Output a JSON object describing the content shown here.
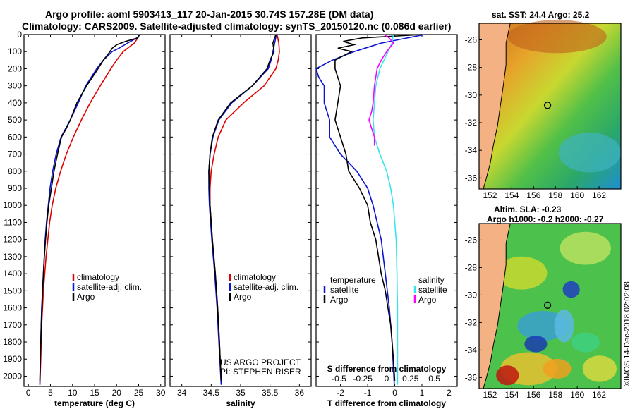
{
  "title_line1": "Argo profile: aoml 5903413_117 20-Jan-2015 30.74S 157.28E (DM data)",
  "title_line2": "Climatology: CARS2009. Satellite-adjusted climatology: synTS_20150120.nc (0.086d earlier)",
  "credit_line1": "US ARGO PROJECT",
  "credit_line2": "PI: STEPHEN RISER",
  "imos_stamp": "©IMOS 14-Dec-2018 02:02:08",
  "map_sst_title": "sat. SST: 24.4 Argo: 25.2",
  "map_sla_title1": "Altim. SLA: -0.23",
  "map_sla_title2": "Argo h1000: -0.2 h2000: -0.27",
  "colors": {
    "climatology": "#e00000",
    "satellite": "#0a14d2",
    "argo": "#000000",
    "sal_satellite": "#33e6ee",
    "sal_argo": "#ff00ff",
    "land": "#f4b183"
  },
  "chart_data": [
    {
      "type": "line",
      "name": "temperature",
      "xlabel": "temperature (deg C)",
      "ylabel": "",
      "xlim": [
        -1,
        31
      ],
      "ylim": [
        2060,
        0
      ],
      "y_ticks": [
        0,
        100,
        200,
        300,
        400,
        500,
        600,
        700,
        800,
        900,
        1000,
        1100,
        1200,
        1300,
        1400,
        1500,
        1600,
        1700,
        1800,
        1900,
        2000
      ],
      "x_ticks": [
        0,
        5,
        10,
        15,
        20,
        25,
        30
      ],
      "legend": {
        "items": [
          "climatology",
          "satellite-adj. clim.",
          "Argo"
        ],
        "position": "lower-right"
      },
      "series": [
        {
          "name": "climatology",
          "color": "#e00000",
          "depth": [
            0,
            20,
            50,
            80,
            100,
            150,
            200,
            300,
            400,
            500,
            600,
            700,
            800,
            900,
            1000,
            1100,
            1200,
            1300,
            1400,
            1500,
            1600,
            1700,
            1800,
            1900,
            2050
          ],
          "x": [
            25.0,
            24.8,
            24.0,
            22.5,
            21.5,
            20.0,
            18.7,
            16.3,
            14.0,
            12.0,
            10.2,
            8.6,
            7.3,
            6.2,
            5.4,
            4.8,
            4.4,
            4.0,
            3.7,
            3.4,
            3.2,
            3.0,
            2.9,
            2.8,
            2.6
          ]
        },
        {
          "name": "satellite-adj. clim.",
          "color": "#0a14d2",
          "depth": [
            0,
            20,
            50,
            80,
            100,
            150,
            200,
            300,
            400,
            500,
            600,
            700,
            800,
            900,
            1000,
            1100,
            1200,
            1300,
            1400,
            1500,
            1600,
            1700,
            1800,
            1900,
            2050
          ],
          "x": [
            25.3,
            24.6,
            22.5,
            20.5,
            19.0,
            17.0,
            15.5,
            13.0,
            11.3,
            9.5,
            7.4,
            6.3,
            5.5,
            4.9,
            4.5,
            4.1,
            3.8,
            3.6,
            3.4,
            3.2,
            3.0,
            2.9,
            2.8,
            2.7,
            2.6
          ]
        },
        {
          "name": "Argo",
          "color": "#000000",
          "depth": [
            0,
            20,
            40,
            60,
            80,
            100,
            150,
            200,
            250,
            300,
            400,
            500,
            550,
            600,
            700,
            800,
            900,
            1000,
            1100,
            1200,
            1300,
            1400,
            1500,
            1600,
            1700,
            1800,
            1900,
            2030
          ],
          "x": [
            25.2,
            24.8,
            22.0,
            20.0,
            19.0,
            18.5,
            17.0,
            15.8,
            14.5,
            13.2,
            11.0,
            9.5,
            8.6,
            7.5,
            6.6,
            5.8,
            5.2,
            4.6,
            4.2,
            3.9,
            3.6,
            3.4,
            3.2,
            3.1,
            2.9,
            2.8,
            2.7,
            2.6
          ]
        }
      ]
    },
    {
      "type": "line",
      "name": "salinity",
      "xlabel": "salinity",
      "ylabel": "",
      "xlim": [
        33.8,
        36.2
      ],
      "ylim": [
        2060,
        0
      ],
      "x_ticks": [
        34,
        34.5,
        35,
        35.5,
        36
      ],
      "legend": {
        "items": [
          "climatology",
          "satellite-adj. clim.",
          "Argo"
        ],
        "position": "lower-right"
      },
      "series": [
        {
          "name": "climatology",
          "color": "#e00000",
          "depth": [
            0,
            50,
            100,
            150,
            200,
            300,
            400,
            500,
            600,
            700,
            800,
            900,
            1000,
            1200,
            1400,
            1600,
            1800,
            2050
          ],
          "x": [
            35.62,
            35.65,
            35.66,
            35.64,
            35.6,
            35.4,
            35.05,
            34.75,
            34.62,
            34.55,
            34.5,
            34.48,
            34.48,
            34.52,
            34.57,
            34.61,
            34.64,
            34.67
          ]
        },
        {
          "name": "satellite-adj. clim.",
          "color": "#0a14d2",
          "depth": [
            0,
            50,
            100,
            150,
            200,
            300,
            400,
            500,
            600,
            700,
            800,
            900,
            1000,
            1200,
            1400,
            1600,
            1800,
            2050
          ],
          "x": [
            35.61,
            35.58,
            35.55,
            35.52,
            35.47,
            35.2,
            34.85,
            34.63,
            34.53,
            34.48,
            34.46,
            34.46,
            34.47,
            34.51,
            34.56,
            34.6,
            34.63,
            34.67
          ]
        },
        {
          "name": "Argo",
          "color": "#000000",
          "depth": [
            0,
            50,
            100,
            150,
            200,
            300,
            400,
            500,
            600,
            700,
            800,
            900,
            1000,
            1200,
            1400,
            1600,
            1800,
            2030
          ],
          "x": [
            35.6,
            35.55,
            35.57,
            35.5,
            35.45,
            35.2,
            34.83,
            34.62,
            34.52,
            34.48,
            34.46,
            34.47,
            34.48,
            34.52,
            34.57,
            34.61,
            34.64,
            34.67
          ]
        }
      ]
    },
    {
      "type": "line",
      "name": "difference from climatology",
      "xlabel": "T difference from climatology",
      "secondary_label": "S difference from climatology",
      "xlim": [
        -2.9,
        2.3
      ],
      "ylim": [
        2060,
        0
      ],
      "x_ticks": [
        -2,
        -1,
        0,
        1,
        2
      ],
      "secondary_ticks": [
        -0.5,
        -0.25,
        0,
        0.25,
        0.5
      ],
      "legend": {
        "groups": [
          {
            "heading": "temperature",
            "items": [
              "satellite",
              "Argo"
            ]
          },
          {
            "heading": "salinity",
            "items": [
              "satellite",
              "Argo"
            ]
          }
        ],
        "position": "lower-center"
      },
      "series": [
        {
          "name": "temperature satellite",
          "color": "#0a14d2",
          "depth": [
            0,
            50,
            100,
            150,
            200,
            250,
            300,
            350,
            400,
            500,
            600,
            700,
            800,
            900,
            1000,
            1200,
            1400,
            1600,
            1800,
            2050
          ],
          "x": [
            1.1,
            -0.5,
            -1.5,
            -2.3,
            -2.9,
            -2.8,
            -2.6,
            -2.6,
            -2.6,
            -2.4,
            -2.4,
            -2.0,
            -1.4,
            -1.0,
            -0.8,
            -0.5,
            -0.35,
            -0.2,
            -0.1,
            -0.02
          ]
        },
        {
          "name": "temperature Argo",
          "color": "#000000",
          "depth": [
            0,
            20,
            40,
            60,
            80,
            100,
            150,
            200,
            300,
            400,
            500,
            600,
            700,
            800,
            900,
            1000,
            1100,
            1200,
            1300,
            1400,
            1500,
            1600,
            1700,
            1800,
            1900,
            2030
          ],
          "x": [
            1.0,
            -1.2,
            -1.9,
            -1.5,
            -2.1,
            -1.6,
            -2.2,
            -2.2,
            -2.0,
            -2.1,
            -2.2,
            -2.0,
            -1.8,
            -1.7,
            -1.3,
            -1.0,
            -0.9,
            -0.7,
            -0.6,
            -0.5,
            -0.35,
            -0.25,
            -0.15,
            -0.1,
            -0.05,
            0.0
          ]
        },
        {
          "name": "salinity satellite",
          "color": "#33e6ee",
          "depth": [
            0,
            50,
            100,
            150,
            200,
            300,
            400,
            500,
            600,
            700,
            800,
            900,
            1000,
            1100,
            1200,
            1400,
            1600,
            1800,
            2050
          ],
          "x": [
            -0.05,
            -0.1,
            -0.25,
            -0.4,
            -0.55,
            -0.7,
            -0.75,
            -0.8,
            -0.75,
            -0.55,
            -0.3,
            -0.15,
            -0.05,
            0.0,
            0.05,
            0.08,
            0.1,
            0.1,
            0.1
          ]
        },
        {
          "name": "salinity Argo",
          "color": "#ff00ff",
          "depth": [
            0,
            20,
            50,
            80,
            100,
            150,
            200,
            300,
            400,
            450,
            500,
            550,
            600,
            650
          ],
          "x": [
            -0.4,
            -0.2,
            -0.05,
            -0.2,
            -0.3,
            -0.5,
            -0.65,
            -0.75,
            -0.8,
            -0.85,
            -0.95,
            -0.85,
            -0.75,
            -0.75
          ]
        }
      ]
    }
  ],
  "maps": [
    {
      "name": "sst",
      "lon_ticks": [
        152,
        154,
        156,
        158,
        160,
        162
      ],
      "lat_ticks": [
        -26,
        -28,
        -30,
        -32,
        -34,
        -36
      ],
      "lon_range": [
        151,
        164
      ],
      "lat_range": [
        -36.8,
        -24.8
      ],
      "float_lon": 157.28,
      "float_lat": -30.74
    },
    {
      "name": "sla",
      "lon_ticks": [
        152,
        154,
        156,
        158,
        160,
        162
      ],
      "lat_ticks": [
        -26,
        -28,
        -30,
        -32,
        -34,
        -36
      ],
      "lon_range": [
        151,
        164
      ],
      "lat_range": [
        -36.8,
        -24.8
      ],
      "float_lon": 157.28,
      "float_lat": -30.74
    }
  ]
}
